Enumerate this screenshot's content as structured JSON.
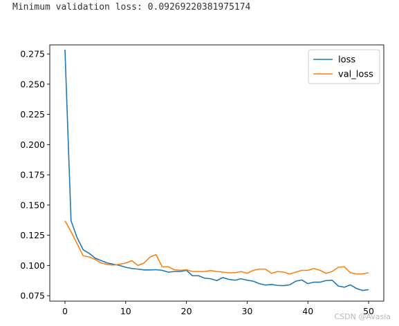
{
  "console": {
    "text": "Minimum validation loss: 0.09269220381975174"
  },
  "watermark": "CSDN @Avasla",
  "chart_data": {
    "type": "line",
    "title": "",
    "xlabel": "",
    "ylabel": "",
    "xlim": [
      -2.5,
      52.5
    ],
    "ylim": [
      0.0705,
      0.2825
    ],
    "xticks": [
      0,
      10,
      20,
      30,
      40,
      50
    ],
    "yticks": [
      0.075,
      0.1,
      0.125,
      0.15,
      0.175,
      0.2,
      0.225,
      0.25,
      0.275
    ],
    "ytick_labels": [
      "0.075",
      "0.100",
      "0.125",
      "0.150",
      "0.175",
      "0.200",
      "0.225",
      "0.250",
      "0.275"
    ],
    "grid": false,
    "legend": "top-right",
    "x": [
      0,
      1,
      2,
      3,
      4,
      5,
      6,
      7,
      8,
      9,
      10,
      11,
      12,
      13,
      14,
      15,
      16,
      17,
      18,
      19,
      20,
      21,
      22,
      23,
      24,
      25,
      26,
      27,
      28,
      29,
      30,
      31,
      32,
      33,
      34,
      35,
      36,
      37,
      38,
      39,
      40,
      41,
      42,
      43,
      44,
      45,
      46,
      47,
      48,
      49,
      50
    ],
    "series": [
      {
        "name": "loss",
        "color": "#1f77b4",
        "values": [
          0.2785,
          0.137,
          0.123,
          0.113,
          0.11,
          0.106,
          0.104,
          0.102,
          0.101,
          0.1,
          0.0985,
          0.0975,
          0.097,
          0.0963,
          0.0963,
          0.0965,
          0.096,
          0.0945,
          0.095,
          0.095,
          0.096,
          0.0915,
          0.0915,
          0.0895,
          0.089,
          0.0875,
          0.09,
          0.0885,
          0.0878,
          0.089,
          0.0878,
          0.087,
          0.085,
          0.0838,
          0.0843,
          0.0835,
          0.0833,
          0.084,
          0.087,
          0.088,
          0.085,
          0.0862,
          0.0862,
          0.0875,
          0.0878,
          0.083,
          0.082,
          0.084,
          0.081,
          0.0793,
          0.08
        ]
      },
      {
        "name": "val_loss",
        "color": "#ff7f0e",
        "values": [
          0.137,
          0.128,
          0.118,
          0.108,
          0.107,
          0.105,
          0.102,
          0.1008,
          0.1003,
          0.101,
          0.102,
          0.104,
          0.1,
          0.102,
          0.107,
          0.109,
          0.099,
          0.099,
          0.0965,
          0.096,
          0.0965,
          0.095,
          0.095,
          0.095,
          0.0958,
          0.095,
          0.0945,
          0.094,
          0.094,
          0.095,
          0.0935,
          0.096,
          0.097,
          0.097,
          0.0935,
          0.095,
          0.0945,
          0.093,
          0.0945,
          0.096,
          0.096,
          0.0975,
          0.096,
          0.0935,
          0.095,
          0.0985,
          0.099,
          0.094,
          0.093,
          0.093,
          0.094
        ]
      }
    ]
  }
}
